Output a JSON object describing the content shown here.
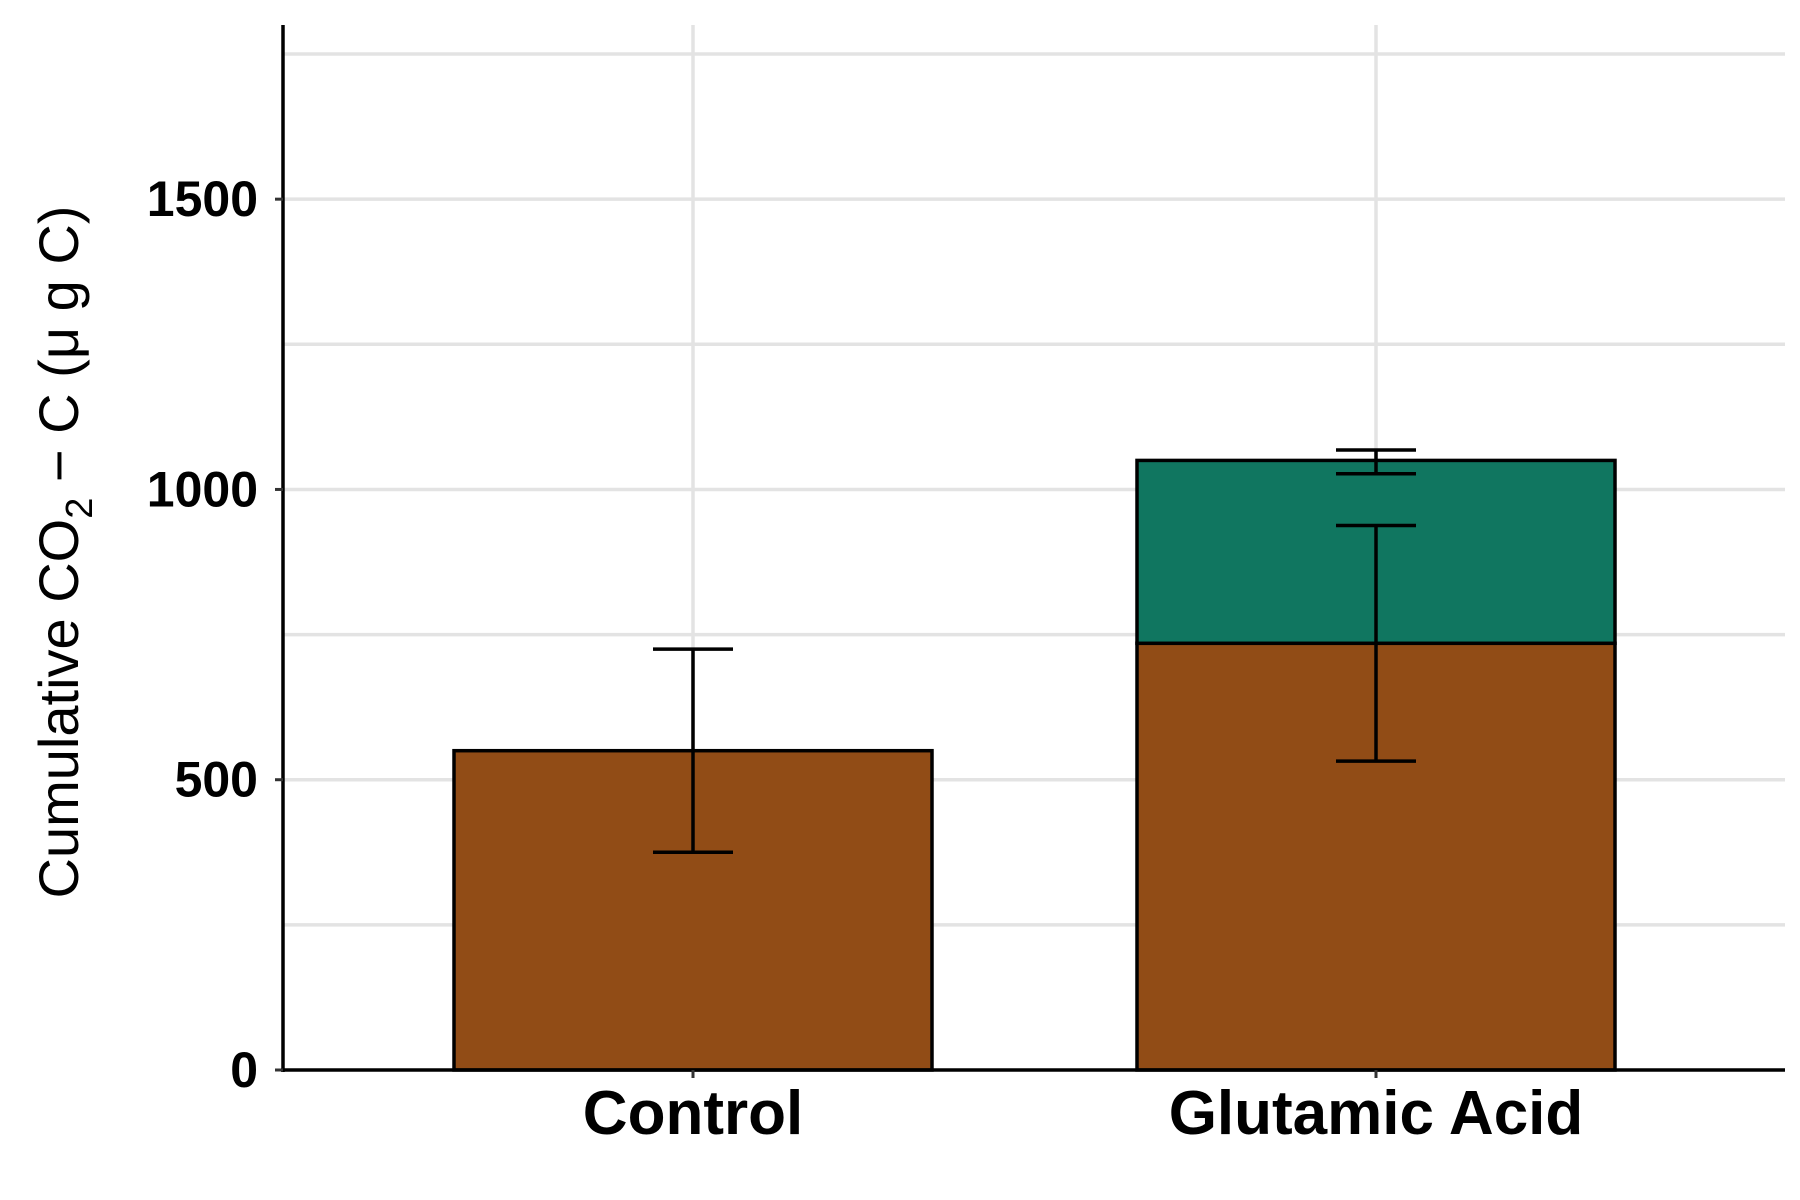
{
  "chart_data": {
    "type": "bar",
    "stacked": true,
    "categories": [
      "Control",
      "Glutamic Acid"
    ],
    "series": [
      {
        "color": "#914C16",
        "values": [
          550,
          735
        ],
        "error": [
          [
            375,
            725
          ],
          [
            532,
            938
          ]
        ]
      },
      {
        "color": "#107660",
        "values": [
          0,
          315
        ],
        "error": [
          null,
          [
            1027,
            1068
          ]
        ]
      }
    ],
    "ylabel": {
      "pre": "Cumulative CO",
      "sub": "2",
      "post": " − C (μ g C)"
    },
    "ylim": [
      0,
      1800
    ],
    "yticks": [
      0,
      500,
      1000,
      1500
    ],
    "grid": true
  }
}
